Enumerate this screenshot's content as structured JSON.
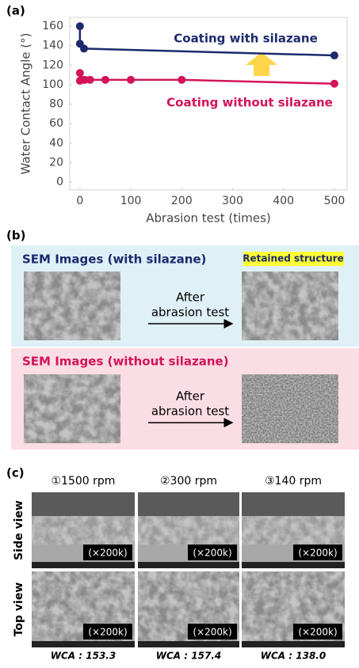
{
  "chart_data": {
    "type": "line",
    "panel_label": "(a)",
    "x_label": "Abrasion test (times)",
    "y_label": "Water Contact Angle (°)",
    "xlim": [
      -20,
      525
    ],
    "ylim": [
      -8,
      169
    ],
    "xticks": [
      0,
      100,
      200,
      300,
      400,
      500
    ],
    "yticks": [
      0,
      20,
      40,
      60,
      80,
      100,
      120,
      140,
      160
    ],
    "series": [
      {
        "name": "Coating with silazane",
        "color": "#1c2a6e",
        "x": [
          0,
          0,
          8,
          500
        ],
        "values": [
          160,
          142,
          137,
          130
        ]
      },
      {
        "name": "Coating without silazane",
        "color": "#d2145a",
        "x": [
          0,
          0,
          5,
          10,
          20,
          50,
          100,
          200,
          500
        ],
        "values": [
          112,
          104,
          105,
          105,
          105,
          105,
          105,
          105,
          101
        ]
      }
    ]
  },
  "panel_b": {
    "label": "(b)",
    "with": {
      "title": "SEM Images   (with silazane)",
      "note": "Retained structure",
      "arrow_text": [
        "After",
        "abrasion test"
      ]
    },
    "without": {
      "title": "SEM Images (without silazane)",
      "arrow_text": [
        "After",
        "abrasion test"
      ]
    }
  },
  "panel_c": {
    "label": "(c)",
    "columns": [
      "①1500 rpm",
      "②300 rpm",
      "③140 rpm"
    ],
    "rows": [
      "Side view",
      "Top view"
    ],
    "magnification": "(×200k)",
    "wca": [
      "WCA : 153.3",
      "WCA : 157.4",
      "WCA : 138.0"
    ]
  }
}
